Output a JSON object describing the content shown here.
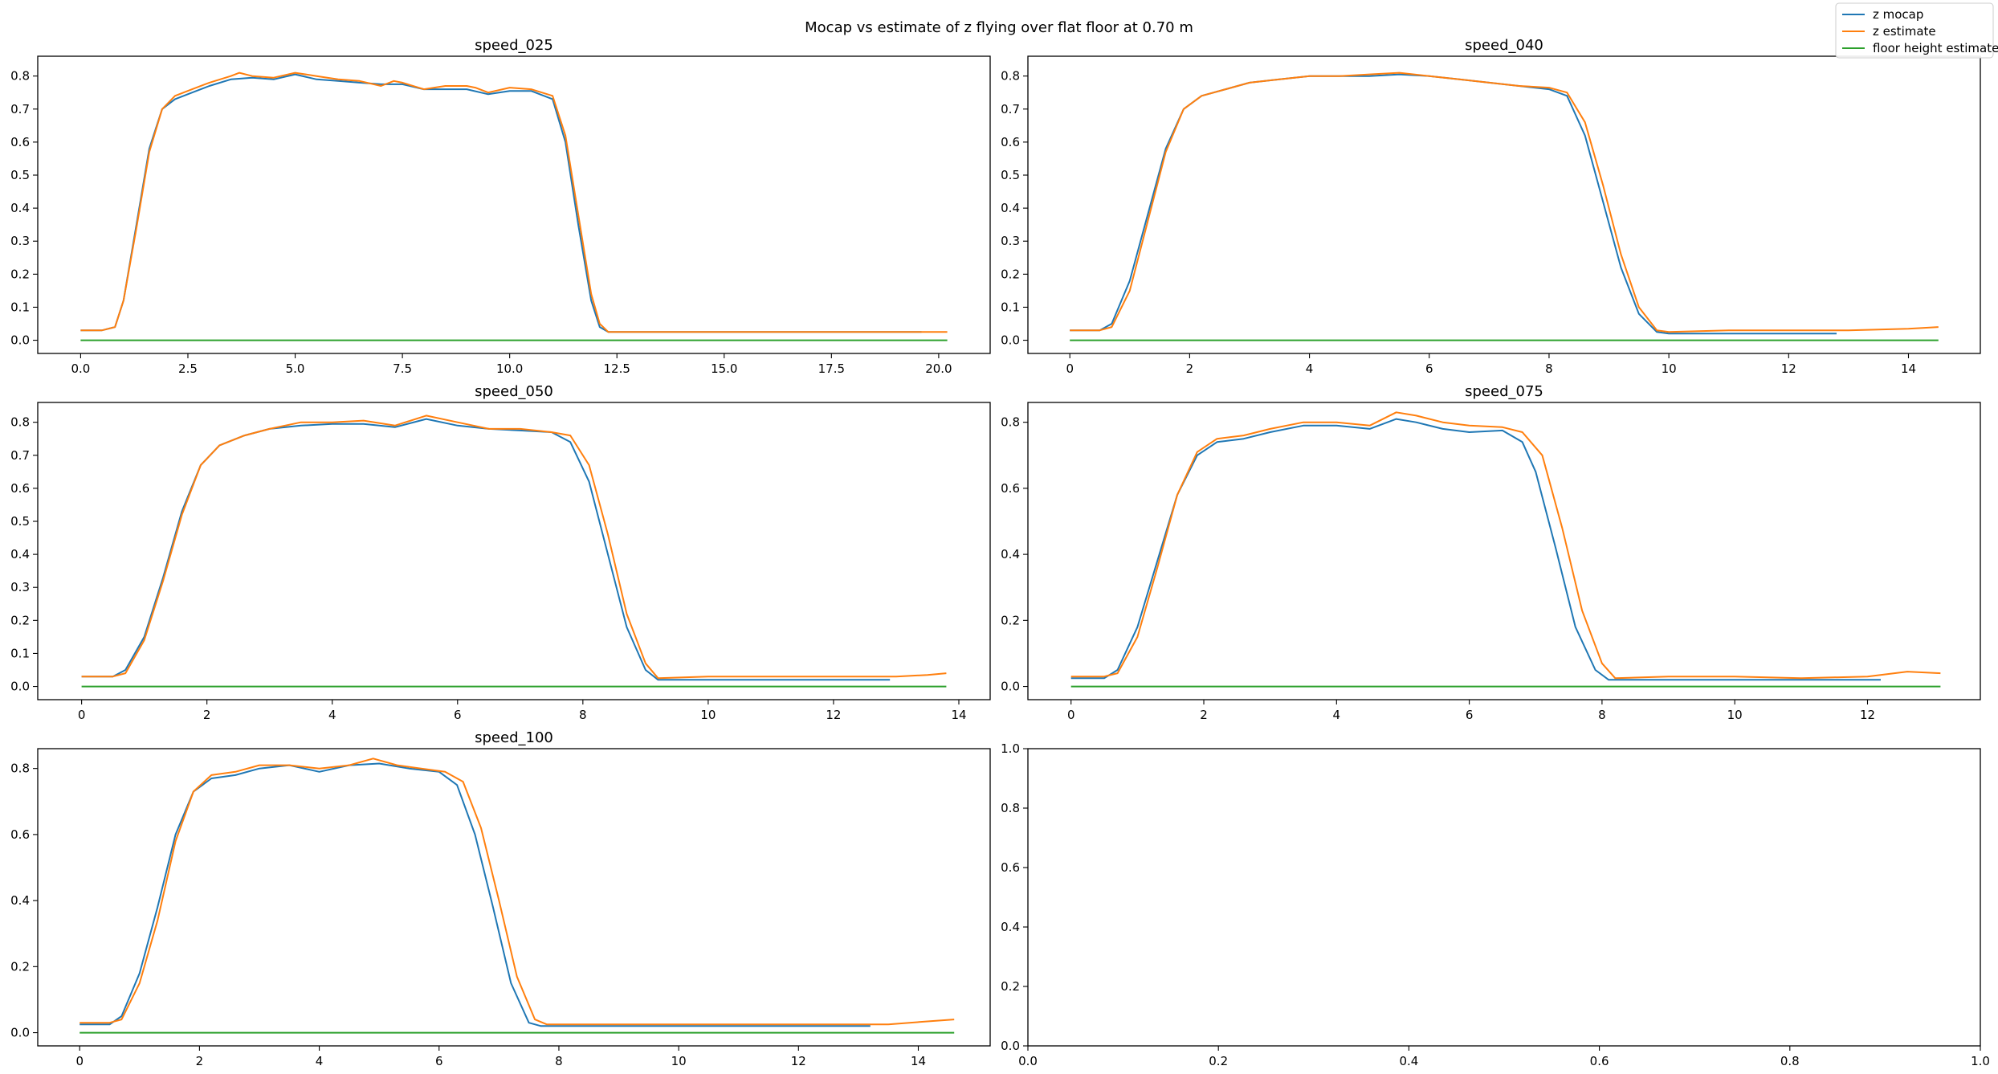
{
  "figure": {
    "suptitle": "Mocap vs estimate of z flying over flat floor at 0.70 m"
  },
  "legend": {
    "entries": [
      {
        "label": "z mocap",
        "color": "#1f77b4"
      },
      {
        "label": "z estimate",
        "color": "#ff7f0e"
      },
      {
        "label": "floor height estimate",
        "color": "#2ca02c"
      }
    ]
  },
  "chart_data": [
    {
      "type": "line",
      "title": "speed_025",
      "xlabel": "",
      "ylabel": "",
      "xlim": [
        -1.0,
        21.2
      ],
      "ylim": [
        -0.04,
        0.86
      ],
      "xticks": [
        0,
        2.5,
        5,
        7.5,
        10,
        12.5,
        15,
        17.5,
        20
      ],
      "xtick_labels": [
        "0.0",
        "2.5",
        "5.0",
        "7.5",
        "10.0",
        "12.5",
        "15.0",
        "17.5",
        "20.0"
      ],
      "yticks": [
        0,
        0.1,
        0.2,
        0.3,
        0.4,
        0.5,
        0.6,
        0.7,
        0.8
      ],
      "ytick_labels": [
        "0.0",
        "0.1",
        "0.2",
        "0.3",
        "0.4",
        "0.5",
        "0.6",
        "0.7",
        "0.8"
      ],
      "grid": false,
      "series": [
        {
          "name": "z mocap",
          "color": "#1f77b4",
          "x": [
            0,
            0.5,
            0.8,
            1.0,
            1.3,
            1.6,
            1.9,
            2.2,
            2.6,
            3.0,
            3.5,
            4.0,
            4.5,
            5.0,
            5.5,
            6.0,
            6.5,
            7.0,
            7.5,
            8.0,
            8.5,
            9.0,
            9.5,
            10.0,
            10.5,
            11.0,
            11.3,
            11.6,
            11.9,
            12.1,
            12.3,
            13,
            15,
            17,
            19,
            19.6
          ],
          "y": [
            0.03,
            0.03,
            0.04,
            0.12,
            0.35,
            0.58,
            0.7,
            0.73,
            0.75,
            0.77,
            0.79,
            0.795,
            0.79,
            0.805,
            0.79,
            0.785,
            0.78,
            0.775,
            0.775,
            0.76,
            0.76,
            0.76,
            0.745,
            0.755,
            0.755,
            0.73,
            0.6,
            0.35,
            0.12,
            0.04,
            0.025,
            0.025,
            0.025,
            0.025,
            0.025,
            0.025
          ]
        },
        {
          "name": "z estimate",
          "color": "#ff7f0e",
          "x": [
            0,
            0.5,
            0.8,
            1.0,
            1.3,
            1.6,
            1.9,
            2.2,
            2.6,
            3.0,
            3.5,
            3.7,
            4.0,
            4.5,
            5.0,
            5.5,
            6.0,
            6.5,
            7.0,
            7.3,
            7.5,
            8.0,
            8.5,
            9.0,
            9.2,
            9.5,
            10.0,
            10.5,
            11.0,
            11.3,
            11.6,
            11.9,
            12.1,
            12.3,
            13,
            15,
            17,
            19,
            19.6,
            20.2
          ],
          "y": [
            0.03,
            0.03,
            0.04,
            0.12,
            0.34,
            0.57,
            0.7,
            0.74,
            0.76,
            0.78,
            0.8,
            0.81,
            0.8,
            0.795,
            0.81,
            0.8,
            0.79,
            0.785,
            0.77,
            0.785,
            0.78,
            0.76,
            0.77,
            0.77,
            0.765,
            0.75,
            0.765,
            0.76,
            0.74,
            0.62,
            0.38,
            0.14,
            0.05,
            0.025,
            0.025,
            0.025,
            0.025,
            0.025,
            0.025,
            0.025
          ]
        },
        {
          "name": "floor height estimate",
          "color": "#2ca02c",
          "x": [
            0,
            20.2
          ],
          "y": [
            0,
            0
          ]
        }
      ]
    },
    {
      "type": "line",
      "title": "speed_040",
      "xlabel": "",
      "ylabel": "",
      "xlim": [
        -0.7,
        15.2
      ],
      "ylim": [
        -0.04,
        0.86
      ],
      "xticks": [
        0,
        2,
        4,
        6,
        8,
        10,
        12,
        14
      ],
      "xtick_labels": [
        "0",
        "2",
        "4",
        "6",
        "8",
        "10",
        "12",
        "14"
      ],
      "yticks": [
        0,
        0.1,
        0.2,
        0.3,
        0.4,
        0.5,
        0.6,
        0.7,
        0.8
      ],
      "ytick_labels": [
        "0.0",
        "0.1",
        "0.2",
        "0.3",
        "0.4",
        "0.5",
        "0.6",
        "0.7",
        "0.8"
      ],
      "grid": false,
      "series": [
        {
          "name": "z mocap",
          "color": "#1f77b4",
          "x": [
            0,
            0.5,
            0.7,
            1.0,
            1.3,
            1.6,
            1.9,
            2.2,
            2.6,
            3.0,
            3.5,
            4.0,
            4.5,
            5.0,
            5.5,
            6.0,
            6.5,
            7.0,
            7.5,
            8.0,
            8.3,
            8.6,
            8.9,
            9.2,
            9.5,
            9.8,
            10.0,
            11,
            12,
            12.8
          ],
          "y": [
            0.03,
            0.03,
            0.05,
            0.18,
            0.38,
            0.58,
            0.7,
            0.74,
            0.76,
            0.78,
            0.79,
            0.8,
            0.8,
            0.8,
            0.805,
            0.8,
            0.79,
            0.78,
            0.77,
            0.76,
            0.74,
            0.62,
            0.42,
            0.22,
            0.08,
            0.025,
            0.02,
            0.02,
            0.02,
            0.02
          ]
        },
        {
          "name": "z estimate",
          "color": "#ff7f0e",
          "x": [
            0,
            0.5,
            0.7,
            1.0,
            1.3,
            1.6,
            1.9,
            2.2,
            2.6,
            3.0,
            3.5,
            4.0,
            4.5,
            5.0,
            5.5,
            6.0,
            6.5,
            7.0,
            7.5,
            8.0,
            8.3,
            8.6,
            8.9,
            9.2,
            9.5,
            9.8,
            10.0,
            11,
            12,
            13,
            14,
            14.5
          ],
          "y": [
            0.03,
            0.03,
            0.04,
            0.15,
            0.36,
            0.57,
            0.7,
            0.74,
            0.76,
            0.78,
            0.79,
            0.8,
            0.8,
            0.805,
            0.81,
            0.8,
            0.79,
            0.78,
            0.77,
            0.765,
            0.75,
            0.66,
            0.47,
            0.26,
            0.1,
            0.03,
            0.025,
            0.03,
            0.03,
            0.03,
            0.035,
            0.04
          ]
        },
        {
          "name": "floor height estimate",
          "color": "#2ca02c",
          "x": [
            0,
            14.5
          ],
          "y": [
            0,
            0
          ]
        }
      ]
    },
    {
      "type": "line",
      "title": "speed_050",
      "xlabel": "",
      "ylabel": "",
      "xlim": [
        -0.7,
        14.5
      ],
      "ylim": [
        -0.04,
        0.86
      ],
      "xticks": [
        0,
        2,
        4,
        6,
        8,
        10,
        12,
        14
      ],
      "xtick_labels": [
        "0",
        "2",
        "4",
        "6",
        "8",
        "10",
        "12",
        "14"
      ],
      "yticks": [
        0,
        0.1,
        0.2,
        0.3,
        0.4,
        0.5,
        0.6,
        0.7,
        0.8
      ],
      "ytick_labels": [
        "0.0",
        "0.1",
        "0.2",
        "0.3",
        "0.4",
        "0.5",
        "0.6",
        "0.7",
        "0.8"
      ],
      "grid": false,
      "series": [
        {
          "name": "z mocap",
          "color": "#1f77b4",
          "x": [
            0,
            0.5,
            0.7,
            1.0,
            1.3,
            1.6,
            1.9,
            2.2,
            2.6,
            3.0,
            3.5,
            4.0,
            4.5,
            5.0,
            5.5,
            6.0,
            6.5,
            7.0,
            7.5,
            7.8,
            8.1,
            8.4,
            8.7,
            9.0,
            9.2,
            10,
            11,
            12,
            12.9
          ],
          "y": [
            0.03,
            0.03,
            0.05,
            0.15,
            0.33,
            0.53,
            0.67,
            0.73,
            0.76,
            0.78,
            0.79,
            0.795,
            0.795,
            0.785,
            0.81,
            0.79,
            0.78,
            0.775,
            0.77,
            0.74,
            0.62,
            0.4,
            0.18,
            0.05,
            0.02,
            0.02,
            0.02,
            0.02,
            0.02
          ]
        },
        {
          "name": "z estimate",
          "color": "#ff7f0e",
          "x": [
            0,
            0.5,
            0.7,
            1.0,
            1.3,
            1.6,
            1.9,
            2.2,
            2.6,
            3.0,
            3.5,
            4.0,
            4.5,
            5.0,
            5.5,
            6.0,
            6.5,
            7.0,
            7.5,
            7.8,
            8.1,
            8.4,
            8.7,
            9.0,
            9.2,
            10,
            11,
            12,
            13,
            13.5,
            13.8
          ],
          "y": [
            0.03,
            0.03,
            0.04,
            0.14,
            0.32,
            0.52,
            0.67,
            0.73,
            0.76,
            0.78,
            0.8,
            0.8,
            0.805,
            0.79,
            0.82,
            0.8,
            0.78,
            0.78,
            0.77,
            0.76,
            0.67,
            0.46,
            0.22,
            0.07,
            0.025,
            0.03,
            0.03,
            0.03,
            0.03,
            0.035,
            0.04
          ]
        },
        {
          "name": "floor height estimate",
          "color": "#2ca02c",
          "x": [
            0,
            13.8
          ],
          "y": [
            0,
            0
          ]
        }
      ]
    },
    {
      "type": "line",
      "title": "speed_075",
      "xlabel": "",
      "ylabel": "",
      "xlim": [
        -0.65,
        13.7
      ],
      "ylim": [
        -0.04,
        0.86
      ],
      "xticks": [
        0,
        2,
        4,
        6,
        8,
        10,
        12
      ],
      "xtick_labels": [
        "0",
        "2",
        "4",
        "6",
        "8",
        "10",
        "12"
      ],
      "yticks": [
        0,
        0.2,
        0.4,
        0.6,
        0.8
      ],
      "ytick_labels": [
        "0.0",
        "0.2",
        "0.4",
        "0.6",
        "0.8"
      ],
      "grid": false,
      "series": [
        {
          "name": "z mocap",
          "color": "#1f77b4",
          "x": [
            0,
            0.5,
            0.7,
            1.0,
            1.3,
            1.6,
            1.9,
            2.2,
            2.6,
            3.0,
            3.5,
            4.0,
            4.5,
            4.9,
            5.2,
            5.6,
            6.0,
            6.5,
            6.8,
            7.0,
            7.3,
            7.6,
            7.9,
            8.1,
            9,
            10,
            11,
            12.2
          ],
          "y": [
            0.025,
            0.025,
            0.05,
            0.18,
            0.38,
            0.58,
            0.7,
            0.74,
            0.75,
            0.77,
            0.79,
            0.79,
            0.78,
            0.81,
            0.8,
            0.78,
            0.77,
            0.775,
            0.74,
            0.65,
            0.42,
            0.18,
            0.05,
            0.02,
            0.02,
            0.02,
            0.02,
            0.02
          ]
        },
        {
          "name": "z estimate",
          "color": "#ff7f0e",
          "x": [
            0,
            0.5,
            0.7,
            1.0,
            1.3,
            1.6,
            1.9,
            2.2,
            2.6,
            3.0,
            3.5,
            4.0,
            4.5,
            4.9,
            5.2,
            5.6,
            6.0,
            6.5,
            6.8,
            7.1,
            7.4,
            7.7,
            8.0,
            8.2,
            9,
            10,
            11,
            12,
            12.6,
            13.1
          ],
          "y": [
            0.03,
            0.03,
            0.04,
            0.15,
            0.36,
            0.58,
            0.71,
            0.75,
            0.76,
            0.78,
            0.8,
            0.8,
            0.79,
            0.83,
            0.82,
            0.8,
            0.79,
            0.785,
            0.77,
            0.7,
            0.48,
            0.23,
            0.07,
            0.025,
            0.03,
            0.03,
            0.025,
            0.03,
            0.045,
            0.04
          ]
        },
        {
          "name": "floor height estimate",
          "color": "#2ca02c",
          "x": [
            0,
            13.1
          ],
          "y": [
            0,
            0
          ]
        }
      ]
    },
    {
      "type": "line",
      "title": "speed_100",
      "xlabel": "",
      "ylabel": "",
      "xlim": [
        -0.7,
        15.2
      ],
      "ylim": [
        -0.04,
        0.86
      ],
      "xticks": [
        0,
        2,
        4,
        6,
        8,
        10,
        12,
        14
      ],
      "xtick_labels": [
        "0",
        "2",
        "4",
        "6",
        "8",
        "10",
        "12",
        "14"
      ],
      "yticks": [
        0,
        0.2,
        0.4,
        0.6,
        0.8
      ],
      "ytick_labels": [
        "0.0",
        "0.2",
        "0.4",
        "0.6",
        "0.8"
      ],
      "grid": false,
      "series": [
        {
          "name": "z mocap",
          "color": "#1f77b4",
          "x": [
            0,
            0.5,
            0.7,
            1.0,
            1.3,
            1.6,
            1.9,
            2.2,
            2.6,
            3.0,
            3.5,
            4.0,
            4.5,
            5.0,
            5.5,
            6.0,
            6.3,
            6.6,
            6.9,
            7.2,
            7.5,
            7.7,
            8.5,
            10,
            12,
            13.2
          ],
          "y": [
            0.025,
            0.025,
            0.05,
            0.18,
            0.38,
            0.6,
            0.73,
            0.77,
            0.78,
            0.8,
            0.81,
            0.79,
            0.81,
            0.815,
            0.8,
            0.79,
            0.75,
            0.6,
            0.38,
            0.15,
            0.03,
            0.02,
            0.02,
            0.02,
            0.02,
            0.02
          ]
        },
        {
          "name": "z estimate",
          "color": "#ff7f0e",
          "x": [
            0,
            0.5,
            0.7,
            1.0,
            1.3,
            1.6,
            1.9,
            2.2,
            2.6,
            3.0,
            3.5,
            4.0,
            4.5,
            4.9,
            5.3,
            5.7,
            6.1,
            6.4,
            6.7,
            7.0,
            7.3,
            7.6,
            7.8,
            8.5,
            10,
            12,
            13.5,
            14.2,
            14.6
          ],
          "y": [
            0.03,
            0.03,
            0.04,
            0.15,
            0.34,
            0.58,
            0.73,
            0.78,
            0.79,
            0.81,
            0.81,
            0.8,
            0.81,
            0.83,
            0.81,
            0.8,
            0.79,
            0.76,
            0.62,
            0.4,
            0.17,
            0.04,
            0.025,
            0.025,
            0.025,
            0.025,
            0.025,
            0.035,
            0.04
          ]
        },
        {
          "name": "floor height estimate",
          "color": "#2ca02c",
          "x": [
            0,
            14.6
          ],
          "y": [
            0,
            0
          ]
        }
      ]
    },
    {
      "type": "line",
      "title": "",
      "xlabel": "",
      "ylabel": "",
      "xlim": [
        0,
        1
      ],
      "ylim": [
        0,
        1
      ],
      "xticks": [
        0,
        0.2,
        0.4,
        0.6,
        0.8,
        1.0
      ],
      "xtick_labels": [
        "0.0",
        "0.2",
        "0.4",
        "0.6",
        "0.8",
        "1.0"
      ],
      "yticks": [
        0,
        0.2,
        0.4,
        0.6,
        0.8,
        1.0
      ],
      "ytick_labels": [
        "0.0",
        "0.2",
        "0.4",
        "0.6",
        "0.8",
        "1.0"
      ],
      "grid": false,
      "series": []
    }
  ]
}
